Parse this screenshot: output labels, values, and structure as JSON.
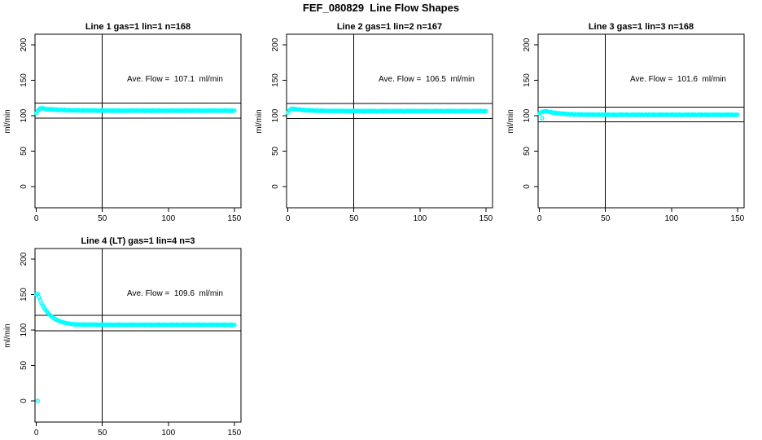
{
  "figure": {
    "title": "FEF_080829  Line Flow Shapes",
    "background": "#ffffff",
    "point_color": "#00ffff",
    "line_color": "#000000"
  },
  "axes": {
    "ylabel": "ml/min",
    "x_ticks": [
      0,
      50,
      100,
      150
    ],
    "y_ticks": [
      0,
      50,
      100,
      150,
      200
    ],
    "xlim": [
      -1,
      155
    ],
    "ylim": [
      -30,
      215
    ],
    "vline_x": 50,
    "grid": false,
    "legend": "none"
  },
  "chart_data": [
    {
      "type": "scatter",
      "title": "Line 1 gas=1 lin=1 n=168",
      "n": 168,
      "ave_flow": 107.1,
      "annotation": "Ave. Flow =  107.1  ml/min",
      "hlines": [
        96.4,
        117.8
      ],
      "x_start": 0,
      "x_step": 1,
      "y": [
        103.5,
        106.5,
        108.8,
        110.2,
        110.6,
        110.4,
        110.0,
        109.7,
        109.1,
        109.3,
        109.3,
        108.5,
        109.3,
        108.4,
        108.5,
        108.8,
        107.8,
        108.5,
        107.9,
        108.2,
        108.3,
        107.6,
        108.4,
        107.6,
        107.8,
        108.1,
        107.2,
        107.8,
        107.3,
        107.7,
        107.8,
        107.1,
        107.9,
        107.2,
        107.4,
        107.8,
        106.9,
        107.6,
        107.1,
        107.5,
        107.6,
        106.9,
        107.7,
        107.0,
        107.3,
        107.6,
        106.8,
        107.4,
        107.0,
        107.4,
        107.5,
        107.4,
        106.7,
        107.6,
        106.9,
        107.1,
        107.5,
        106.6,
        107.3,
        106.8,
        107.2,
        107.4,
        106.7,
        107.6,
        106.9,
        107.1,
        107.5,
        106.6,
        107.3,
        106.8,
        107.2,
        107.4,
        106.7,
        107.6,
        106.9,
        107.1,
        107.5,
        106.6,
        107.3,
        106.8,
        107.2,
        107.4,
        106.7,
        107.6,
        106.9,
        107.1,
        107.5,
        106.6,
        107.3,
        106.8,
        107.2,
        107.4,
        106.7,
        107.6,
        106.9,
        107.1,
        107.5,
        106.6,
        107.3,
        106.8,
        107.2,
        107.4,
        106.7,
        107.6,
        106.9,
        107.1,
        107.5,
        106.6,
        107.3,
        106.8,
        107.2,
        107.4,
        106.7,
        107.6,
        106.9,
        107.1,
        107.5,
        106.6,
        107.3,
        106.8,
        107.2,
        107.4,
        106.7,
        107.6,
        106.9,
        107.1,
        107.5,
        106.6,
        107.3,
        106.8,
        107.2,
        107.4,
        106.7,
        107.6,
        106.9,
        107.1,
        107.5,
        106.6,
        107.3,
        106.8,
        107.2,
        107.4,
        106.7,
        107.6,
        106.9,
        107.1,
        107.5,
        106.6,
        107.3,
        106.8,
        107.2
      ],
      "outliers": []
    },
    {
      "type": "scatter",
      "title": "Line 2 gas=1 lin=2 n=167",
      "n": 167,
      "ave_flow": 106.5,
      "annotation": "Ave. Flow =  106.5  ml/min",
      "hlines": [
        95.9,
        117.2
      ],
      "x_start": 0,
      "x_step": 1,
      "y": [
        104.5,
        107.0,
        108.9,
        109.8,
        110.0,
        109.7,
        109.3,
        109.0,
        108.6,
        108.8,
        108.5,
        107.9,
        108.4,
        107.6,
        107.8,
        108.0,
        107.2,
        107.8,
        107.2,
        107.5,
        107.4,
        106.8,
        107.5,
        106.8,
        107.0,
        107.3,
        106.5,
        107.1,
        106.6,
        107.0,
        107.0,
        106.4,
        107.2,
        106.5,
        106.8,
        107.0,
        106.3,
        106.9,
        106.5,
        106.8,
        106.9,
        106.3,
        107.0,
        106.4,
        106.6,
        106.9,
        106.2,
        106.8,
        106.4,
        106.7,
        106.8,
        106.8,
        106.1,
        107.0,
        106.3,
        106.5,
        106.9,
        106.0,
        106.7,
        106.2,
        106.6,
        106.8,
        106.1,
        107.0,
        106.3,
        106.5,
        106.9,
        106.0,
        106.7,
        106.2,
        106.6,
        106.8,
        106.1,
        107.0,
        106.3,
        106.5,
        106.9,
        106.0,
        106.7,
        106.2,
        106.6,
        106.8,
        106.1,
        107.0,
        106.3,
        106.5,
        106.9,
        106.0,
        106.7,
        106.2,
        106.6,
        106.8,
        106.1,
        107.0,
        106.3,
        106.5,
        106.9,
        106.0,
        106.7,
        106.2,
        106.6,
        106.8,
        106.1,
        107.0,
        106.3,
        106.5,
        106.9,
        106.0,
        106.7,
        106.2,
        106.6,
        106.8,
        106.1,
        107.0,
        106.3,
        106.5,
        106.9,
        106.0,
        106.7,
        106.2,
        106.6,
        106.8,
        106.1,
        107.0,
        106.3,
        106.5,
        106.9,
        106.0,
        106.7,
        106.2,
        106.6,
        106.8,
        106.1,
        107.0,
        106.3,
        106.5,
        106.9,
        106.0,
        106.7,
        106.2,
        106.6,
        106.8,
        106.1,
        107.0,
        106.3,
        106.5,
        106.9,
        106.0,
        106.7,
        106.2,
        106.6
      ],
      "outliers": []
    },
    {
      "type": "scatter",
      "title": "Line 3 gas=1 lin=3 n=168",
      "n": 168,
      "ave_flow": 101.6,
      "annotation": "Ave. Flow =  101.6  ml/min",
      "hlines": [
        91.4,
        111.8
      ],
      "x_start": 0,
      "x_step": 1,
      "y": [
        103.0,
        104.5,
        105.3,
        105.8,
        106.2,
        106.3,
        105.9,
        105.5,
        105.1,
        105.0,
        104.4,
        103.9,
        104.3,
        103.4,
        103.5,
        103.6,
        102.7,
        103.2,
        102.6,
        102.8,
        102.7,
        102.0,
        102.6,
        101.9,
        102.1,
        102.3,
        101.5,
        102.1,
        101.6,
        101.9,
        101.9,
        101.3,
        102.0,
        101.3,
        101.6,
        101.8,
        101.1,
        101.7,
        101.3,
        101.6,
        101.7,
        101.1,
        101.8,
        101.2,
        101.4,
        101.7,
        101.0,
        101.6,
        101.2,
        101.5,
        101.6,
        101.6,
        100.9,
        101.8,
        101.1,
        101.3,
        101.7,
        100.8,
        101.5,
        101.0,
        101.4,
        101.6,
        100.9,
        101.8,
        101.1,
        101.3,
        101.7,
        100.8,
        101.5,
        101.0,
        101.4,
        101.6,
        100.9,
        101.8,
        101.1,
        101.3,
        101.7,
        100.8,
        101.5,
        101.0,
        101.4,
        101.6,
        100.9,
        101.8,
        101.1,
        101.3,
        101.7,
        100.8,
        101.5,
        101.0,
        101.4,
        101.6,
        100.9,
        101.8,
        101.1,
        101.3,
        101.7,
        100.8,
        101.5,
        101.0,
        101.4,
        101.6,
        100.9,
        101.8,
        101.1,
        101.3,
        101.7,
        100.8,
        101.5,
        101.0,
        101.4,
        101.6,
        100.9,
        101.8,
        101.1,
        101.3,
        101.7,
        100.8,
        101.5,
        101.0,
        101.4,
        101.6,
        100.9,
        101.8,
        101.1,
        101.3,
        101.7,
        100.8,
        101.5,
        101.0,
        101.4,
        101.6,
        100.9,
        101.8,
        101.1,
        101.3,
        101.7,
        100.8,
        101.5,
        101.0,
        101.4,
        101.6,
        100.9,
        101.8,
        101.1,
        101.3,
        101.7,
        100.8,
        101.5,
        101.0,
        101.4
      ],
      "outliers": [
        [
          2,
          96.5
        ]
      ]
    },
    {
      "type": "scatter",
      "title": "Line 4 (LT) gas=1 lin=4 n=3",
      "n": 3,
      "ave_flow": 109.6,
      "annotation": "Ave. Flow =  109.6  ml/min",
      "hlines": [
        98.6,
        120.6
      ],
      "x_start": 0,
      "x_step": 1,
      "y": [
        150.3,
        151.0,
        146.3,
        141.8,
        137.9,
        134.3,
        131.2,
        128.4,
        125.9,
        123.7,
        121.8,
        120.0,
        118.5,
        117.1,
        115.9,
        114.8,
        113.8,
        113.0,
        112.2,
        111.6,
        111.0,
        110.5,
        110.0,
        109.6,
        109.3,
        109.0,
        108.7,
        108.4,
        108.2,
        108.0,
        107.9,
        107.7,
        108.1,
        107.4,
        107.6,
        107.9,
        107.2,
        107.8,
        107.4,
        107.7,
        107.8,
        107.2,
        107.9,
        107.3,
        107.5,
        107.8,
        107.1,
        107.7,
        107.3,
        107.6,
        107.7,
        107.6,
        106.9,
        107.8,
        107.1,
        107.3,
        107.7,
        106.8,
        107.5,
        107.0,
        107.4,
        107.6,
        106.9,
        107.8,
        107.1,
        107.3,
        107.7,
        106.8,
        107.5,
        107.0,
        107.4,
        107.6,
        106.9,
        107.8,
        107.1,
        107.3,
        107.7,
        106.8,
        107.5,
        107.0,
        107.4,
        107.6,
        106.9,
        107.8,
        107.1,
        107.3,
        107.7,
        106.8,
        107.5,
        107.0,
        107.4,
        107.6,
        106.9,
        107.8,
        107.1,
        107.3,
        107.7,
        106.8,
        107.5,
        107.0,
        107.4,
        107.6,
        106.9,
        107.8,
        107.1,
        107.3,
        107.7,
        106.8,
        107.5,
        107.0,
        107.4,
        107.6,
        106.9,
        107.8,
        107.1,
        107.3,
        107.7,
        106.8,
        107.5,
        107.0,
        107.4,
        107.6,
        106.9,
        107.8,
        107.1,
        107.3,
        107.7,
        106.8,
        107.5,
        107.0,
        107.4,
        107.6,
        106.9,
        107.8,
        107.1,
        107.3,
        107.7,
        106.8,
        107.5,
        107.0,
        107.4,
        107.6,
        106.9,
        107.8,
        107.1,
        107.3,
        107.7,
        106.8,
        107.5,
        107.0,
        107.4
      ],
      "outliers": [
        [
          1,
          0
        ]
      ]
    }
  ]
}
